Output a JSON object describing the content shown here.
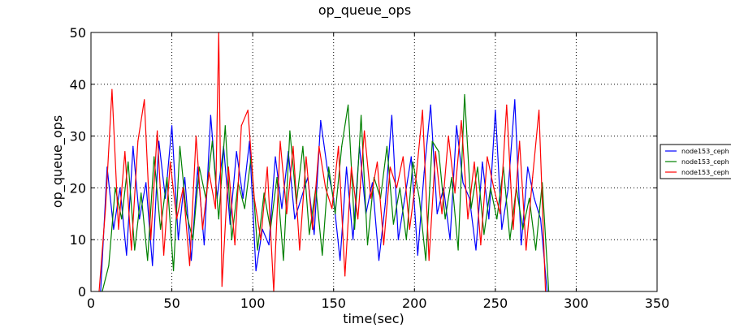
{
  "chart_data": {
    "type": "line",
    "title": "op_queue_ops",
    "xlabel": "time(sec)",
    "ylabel": "op_queue_ops",
    "xlim": [
      0,
      350
    ],
    "ylim": [
      0,
      50
    ],
    "xticks": [
      0,
      50,
      100,
      150,
      200,
      250,
      300,
      350
    ],
    "yticks": [
      0,
      10,
      20,
      30,
      40,
      50
    ],
    "grid": true,
    "legend_position": "right",
    "series": [
      {
        "name": "node153_ceph",
        "color": "#0000ff",
        "x": [
          6,
          10,
          14,
          18,
          22,
          26,
          30,
          34,
          38,
          42,
          46,
          50,
          54,
          58,
          62,
          66,
          70,
          74,
          78,
          82,
          86,
          90,
          94,
          98,
          102,
          106,
          110,
          114,
          118,
          122,
          126,
          130,
          134,
          138,
          142,
          146,
          150,
          154,
          158,
          162,
          166,
          170,
          174,
          178,
          182,
          186,
          190,
          194,
          198,
          202,
          206,
          210,
          214,
          218,
          222,
          226,
          230,
          234,
          238,
          242,
          246,
          250,
          254,
          258,
          262,
          266,
          270,
          274,
          278,
          282
        ],
        "values": [
          0,
          24,
          12,
          20,
          7,
          28,
          14,
          21,
          5,
          29,
          18,
          32,
          10,
          22,
          6,
          24,
          9,
          34,
          18,
          28,
          13,
          27,
          18,
          29,
          4,
          12,
          9,
          26,
          16,
          27,
          14,
          18,
          22,
          11,
          33,
          24,
          18,
          6,
          24,
          10,
          28,
          15,
          21,
          6,
          17,
          34,
          10,
          18,
          26,
          7,
          23,
          36,
          15,
          20,
          10,
          32,
          21,
          18,
          8,
          25,
          14,
          35,
          12,
          20,
          37,
          9,
          24,
          18,
          14,
          0
        ]
      },
      {
        "name": "node153_ceph",
        "color": "#008000",
        "x": [
          7,
          11,
          15,
          19,
          23,
          27,
          31,
          35,
          39,
          43,
          47,
          51,
          55,
          59,
          63,
          67,
          71,
          75,
          79,
          83,
          87,
          91,
          95,
          99,
          103,
          107,
          111,
          115,
          119,
          123,
          127,
          131,
          135,
          139,
          143,
          147,
          151,
          155,
          159,
          163,
          167,
          171,
          175,
          179,
          183,
          187,
          191,
          195,
          199,
          203,
          207,
          211,
          215,
          219,
          223,
          227,
          231,
          235,
          239,
          243,
          247,
          251,
          255,
          259,
          263,
          267,
          271,
          275,
          279,
          283
        ],
        "values": [
          0,
          5,
          20,
          14,
          25,
          8,
          19,
          6,
          26,
          12,
          22,
          4,
          28,
          15,
          10,
          24,
          18,
          29,
          14,
          32,
          10,
          21,
          16,
          26,
          8,
          19,
          12,
          22,
          6,
          31,
          17,
          28,
          11,
          20,
          7,
          24,
          15,
          28,
          36,
          12,
          34,
          9,
          22,
          18,
          28,
          13,
          20,
          10,
          25,
          18,
          6,
          29,
          27,
          14,
          22,
          8,
          38,
          16,
          24,
          11,
          20,
          14,
          24,
          10,
          20,
          12,
          18,
          8,
          21,
          0
        ]
      },
      {
        "name": "node153_ceph",
        "color": "#ff0000",
        "x": [
          5,
          9,
          13,
          17,
          21,
          25,
          29,
          33,
          37,
          41,
          45,
          49,
          53,
          57,
          61,
          65,
          69,
          73,
          77,
          79,
          81,
          85,
          89,
          93,
          97,
          101,
          105,
          109,
          113,
          117,
          121,
          125,
          129,
          133,
          137,
          141,
          145,
          149,
          153,
          157,
          161,
          165,
          169,
          173,
          177,
          181,
          185,
          189,
          193,
          197,
          201,
          205,
          209,
          213,
          217,
          221,
          225,
          229,
          233,
          237,
          241,
          245,
          249,
          253,
          257,
          261,
          265,
          269,
          273,
          277,
          281
        ],
        "values": [
          0,
          16,
          39,
          12,
          27,
          8,
          29,
          37,
          10,
          31,
          7,
          25,
          14,
          20,
          5,
          30,
          12,
          23,
          16,
          50,
          1,
          24,
          9,
          32,
          35,
          18,
          10,
          24,
          0,
          29,
          15,
          28,
          8,
          26,
          12,
          28,
          20,
          16,
          28,
          3,
          24,
          14,
          31,
          18,
          25,
          9,
          24,
          20,
          26,
          12,
          22,
          35,
          6,
          27,
          15,
          30,
          19,
          33,
          14,
          25,
          9,
          26,
          20,
          15,
          36,
          12,
          29,
          8,
          22,
          35,
          0
        ]
      }
    ]
  }
}
